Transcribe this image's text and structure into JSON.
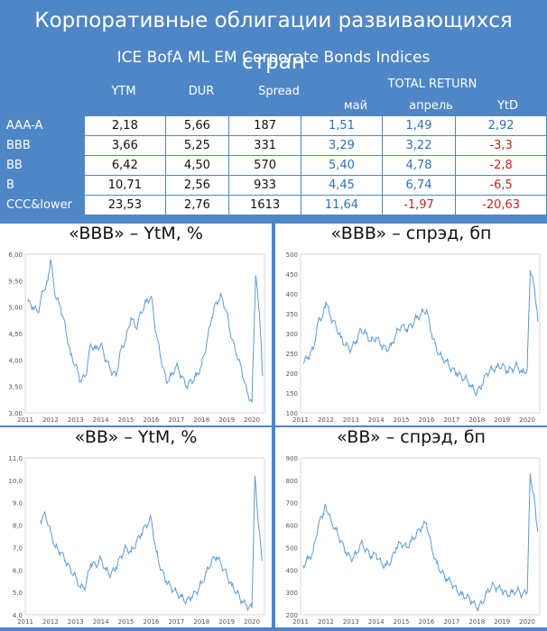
{
  "title": "Корпоративные облигации развивающихся стран",
  "table": {
    "subtitle": "ICE BofA ML EM Corporate Bonds Indices",
    "headers": {
      "ytm": "YTM",
      "dur": "DUR",
      "spread": "Spread",
      "total_return": "TOTAL RETURN",
      "may": "май",
      "april": "апрель",
      "ytd": "YtD"
    },
    "rows": [
      {
        "label": "AAA-A",
        "ytm": "2,18",
        "dur": "5,66",
        "spread": "187",
        "may": "1,51",
        "april": "1,49",
        "ytd": "2,92"
      },
      {
        "label": "BBB",
        "ytm": "3,66",
        "dur": "5,25",
        "spread": "331",
        "may": "3,29",
        "april": "3,22",
        "ytd": "-3,3"
      },
      {
        "label": "BB",
        "ytm": "6,42",
        "dur": "4,50",
        "spread": "570",
        "may": "5,40",
        "april": "4,78",
        "ytd": "-2,8"
      },
      {
        "label": "B",
        "ytm": "10,71",
        "dur": "2,56",
        "spread": "933",
        "may": "4,45",
        "april": "6,74",
        "ytd": "-6,5"
      },
      {
        "label": "CCC&lower",
        "ytm": "23,53",
        "dur": "2,76",
        "spread": "1613",
        "may": "11,64",
        "april": "-1,97",
        "ytd": "-20,63"
      }
    ],
    "colors": {
      "header_bg": "#4f86c6",
      "positive": "#2f6fba",
      "negative": "#c0261e"
    }
  },
  "chart_data": [
    {
      "type": "line",
      "title": "«BBB» – YtM, %",
      "ylim": [
        3.0,
        6.0
      ],
      "yticks": [
        "3,00",
        "3,50",
        "4,00",
        "4,50",
        "5,00",
        "5,50",
        "6,00"
      ],
      "xticks": [
        "2011",
        "2012",
        "2013",
        "2014",
        "2015",
        "2016",
        "2017",
        "2018",
        "2019",
        "2020"
      ],
      "xlim": [
        2011.0,
        2020.5
      ],
      "series": [
        {
          "color": "#5b9bd5",
          "points": [
            [
              2011.1,
              5.1
            ],
            [
              2011.3,
              5.0
            ],
            [
              2011.5,
              4.9
            ],
            [
              2011.7,
              5.3
            ],
            [
              2011.9,
              5.5
            ],
            [
              2012.0,
              5.9
            ],
            [
              2012.2,
              5.2
            ],
            [
              2012.4,
              5.0
            ],
            [
              2012.6,
              4.6
            ],
            [
              2012.8,
              4.1
            ],
            [
              2013.0,
              3.9
            ],
            [
              2013.2,
              3.6
            ],
            [
              2013.4,
              3.7
            ],
            [
              2013.6,
              4.3
            ],
            [
              2013.8,
              4.2
            ],
            [
              2014.0,
              4.3
            ],
            [
              2014.2,
              4.0
            ],
            [
              2014.4,
              3.8
            ],
            [
              2014.6,
              3.7
            ],
            [
              2014.8,
              4.2
            ],
            [
              2015.0,
              4.4
            ],
            [
              2015.2,
              4.8
            ],
            [
              2015.4,
              4.6
            ],
            [
              2015.6,
              4.9
            ],
            [
              2015.8,
              5.1
            ],
            [
              2016.0,
              5.2
            ],
            [
              2016.2,
              4.5
            ],
            [
              2016.4,
              4.0
            ],
            [
              2016.6,
              3.6
            ],
            [
              2016.8,
              3.7
            ],
            [
              2017.0,
              3.9
            ],
            [
              2017.2,
              3.7
            ],
            [
              2017.4,
              3.5
            ],
            [
              2017.6,
              3.6
            ],
            [
              2017.8,
              3.7
            ],
            [
              2018.0,
              3.9
            ],
            [
              2018.2,
              4.3
            ],
            [
              2018.4,
              4.8
            ],
            [
              2018.6,
              5.1
            ],
            [
              2018.8,
              5.2
            ],
            [
              2019.0,
              4.9
            ],
            [
              2019.2,
              4.4
            ],
            [
              2019.4,
              4.1
            ],
            [
              2019.6,
              3.8
            ],
            [
              2019.8,
              3.4
            ],
            [
              2020.0,
              3.2
            ],
            [
              2020.15,
              5.6
            ],
            [
              2020.3,
              4.9
            ],
            [
              2020.42,
              3.7
            ]
          ]
        }
      ]
    },
    {
      "type": "line",
      "title": "«BBB» – спрэд, бп",
      "ylim": [
        100,
        500
      ],
      "yticks": [
        "100",
        "150",
        "200",
        "250",
        "300",
        "350",
        "400",
        "450",
        "500"
      ],
      "xticks": [
        "2011",
        "2012",
        "2013",
        "2014",
        "2015",
        "2016",
        "2017",
        "2018",
        "2019",
        "2020"
      ],
      "xlim": [
        2011.0,
        2020.5
      ],
      "series": [
        {
          "color": "#5b9bd5",
          "points": [
            [
              2011.1,
              225
            ],
            [
              2011.3,
              240
            ],
            [
              2011.5,
              260
            ],
            [
              2011.7,
              330
            ],
            [
              2011.9,
              350
            ],
            [
              2012.0,
              380
            ],
            [
              2012.2,
              340
            ],
            [
              2012.4,
              320
            ],
            [
              2012.6,
              290
            ],
            [
              2012.8,
              270
            ],
            [
              2013.0,
              260
            ],
            [
              2013.2,
              280
            ],
            [
              2013.4,
              310
            ],
            [
              2013.6,
              300
            ],
            [
              2013.8,
              280
            ],
            [
              2014.0,
              290
            ],
            [
              2014.2,
              270
            ],
            [
              2014.4,
              260
            ],
            [
              2014.6,
              270
            ],
            [
              2014.8,
              300
            ],
            [
              2015.0,
              320
            ],
            [
              2015.2,
              310
            ],
            [
              2015.4,
              320
            ],
            [
              2015.6,
              340
            ],
            [
              2015.8,
              350
            ],
            [
              2016.0,
              360
            ],
            [
              2016.2,
              300
            ],
            [
              2016.4,
              260
            ],
            [
              2016.6,
              240
            ],
            [
              2016.8,
              230
            ],
            [
              2017.0,
              210
            ],
            [
              2017.2,
              200
            ],
            [
              2017.4,
              190
            ],
            [
              2017.6,
              185
            ],
            [
              2017.8,
              165
            ],
            [
              2018.0,
              150
            ],
            [
              2018.2,
              170
            ],
            [
              2018.4,
              200
            ],
            [
              2018.6,
              210
            ],
            [
              2018.8,
              215
            ],
            [
              2019.0,
              220
            ],
            [
              2019.2,
              205
            ],
            [
              2019.4,
              210
            ],
            [
              2019.6,
              220
            ],
            [
              2019.8,
              200
            ],
            [
              2020.0,
              210
            ],
            [
              2020.12,
              460
            ],
            [
              2020.3,
              410
            ],
            [
              2020.42,
              330
            ]
          ]
        }
      ]
    },
    {
      "type": "line",
      "title": "«BB» – YtM, %",
      "ylim": [
        4.0,
        11.0
      ],
      "yticks": [
        "4,0",
        "5,0",
        "6,0",
        "7,0",
        "8,0",
        "9,0",
        "10,0",
        "11,0"
      ],
      "xticks": [
        "2011",
        "2012",
        "2013",
        "2014",
        "2015",
        "2016",
        "2017",
        "2018",
        "2019",
        "2020"
      ],
      "xlim": [
        2011.0,
        2020.5
      ],
      "series": [
        {
          "color": "#5b9bd5",
          "points": [
            [
              2011.6,
              8.2
            ],
            [
              2011.8,
              8.5
            ],
            [
              2012.0,
              7.7
            ],
            [
              2012.2,
              7.0
            ],
            [
              2012.4,
              6.8
            ],
            [
              2012.6,
              6.4
            ],
            [
              2012.8,
              6.0
            ],
            [
              2013.0,
              5.7
            ],
            [
              2013.2,
              5.2
            ],
            [
              2013.4,
              5.3
            ],
            [
              2013.6,
              6.3
            ],
            [
              2013.8,
              6.2
            ],
            [
              2014.0,
              6.5
            ],
            [
              2014.2,
              6.0
            ],
            [
              2014.4,
              5.8
            ],
            [
              2014.6,
              6.1
            ],
            [
              2014.8,
              6.6
            ],
            [
              2015.0,
              7.0
            ],
            [
              2015.2,
              6.8
            ],
            [
              2015.4,
              7.2
            ],
            [
              2015.6,
              7.6
            ],
            [
              2015.8,
              8.0
            ],
            [
              2016.0,
              8.3
            ],
            [
              2016.2,
              6.8
            ],
            [
              2016.4,
              6.0
            ],
            [
              2016.6,
              5.5
            ],
            [
              2016.8,
              5.2
            ],
            [
              2017.0,
              5.0
            ],
            [
              2017.2,
              4.8
            ],
            [
              2017.4,
              4.6
            ],
            [
              2017.6,
              4.8
            ],
            [
              2017.8,
              5.0
            ],
            [
              2018.0,
              5.4
            ],
            [
              2018.2,
              5.9
            ],
            [
              2018.4,
              6.4
            ],
            [
              2018.6,
              6.6
            ],
            [
              2018.8,
              6.2
            ],
            [
              2019.0,
              5.8
            ],
            [
              2019.2,
              5.3
            ],
            [
              2019.4,
              5.0
            ],
            [
              2019.6,
              4.6
            ],
            [
              2019.8,
              4.4
            ],
            [
              2020.0,
              4.3
            ],
            [
              2020.12,
              10.2
            ],
            [
              2020.28,
              7.8
            ],
            [
              2020.42,
              6.4
            ]
          ]
        }
      ]
    },
    {
      "type": "line",
      "title": "«BB» – спрэд, бп",
      "ylim": [
        200,
        900
      ],
      "yticks": [
        "200",
        "300",
        "400",
        "500",
        "600",
        "700",
        "800",
        "900"
      ],
      "xticks": [
        "2011",
        "2012",
        "2013",
        "2014",
        "2015",
        "2016",
        "2017",
        "2018",
        "2019",
        "2020"
      ],
      "xlim": [
        2011.0,
        2020.5
      ],
      "series": [
        {
          "color": "#5b9bd5",
          "points": [
            [
              2011.1,
              420
            ],
            [
              2011.3,
              450
            ],
            [
              2011.5,
              480
            ],
            [
              2011.7,
              600
            ],
            [
              2011.9,
              650
            ],
            [
              2012.0,
              690
            ],
            [
              2012.2,
              620
            ],
            [
              2012.4,
              580
            ],
            [
              2012.6,
              530
            ],
            [
              2012.8,
              480
            ],
            [
              2013.0,
              450
            ],
            [
              2013.2,
              470
            ],
            [
              2013.4,
              520
            ],
            [
              2013.6,
              490
            ],
            [
              2013.8,
              460
            ],
            [
              2014.0,
              470
            ],
            [
              2014.2,
              430
            ],
            [
              2014.4,
              420
            ],
            [
              2014.6,
              440
            ],
            [
              2014.8,
              500
            ],
            [
              2015.0,
              520
            ],
            [
              2015.2,
              500
            ],
            [
              2015.4,
              530
            ],
            [
              2015.6,
              560
            ],
            [
              2015.8,
              590
            ],
            [
              2016.0,
              610
            ],
            [
              2016.2,
              500
            ],
            [
              2016.4,
              430
            ],
            [
              2016.6,
              390
            ],
            [
              2016.8,
              360
            ],
            [
              2017.0,
              340
            ],
            [
              2017.2,
              310
            ],
            [
              2017.4,
              290
            ],
            [
              2017.6,
              280
            ],
            [
              2017.8,
              260
            ],
            [
              2018.0,
              230
            ],
            [
              2018.2,
              250
            ],
            [
              2018.4,
              300
            ],
            [
              2018.6,
              330
            ],
            [
              2018.8,
              320
            ],
            [
              2019.0,
              310
            ],
            [
              2019.2,
              290
            ],
            [
              2019.4,
              300
            ],
            [
              2019.6,
              310
            ],
            [
              2019.8,
              290
            ],
            [
              2020.0,
              300
            ],
            [
              2020.12,
              830
            ],
            [
              2020.3,
              700
            ],
            [
              2020.42,
              570
            ]
          ]
        }
      ]
    }
  ]
}
